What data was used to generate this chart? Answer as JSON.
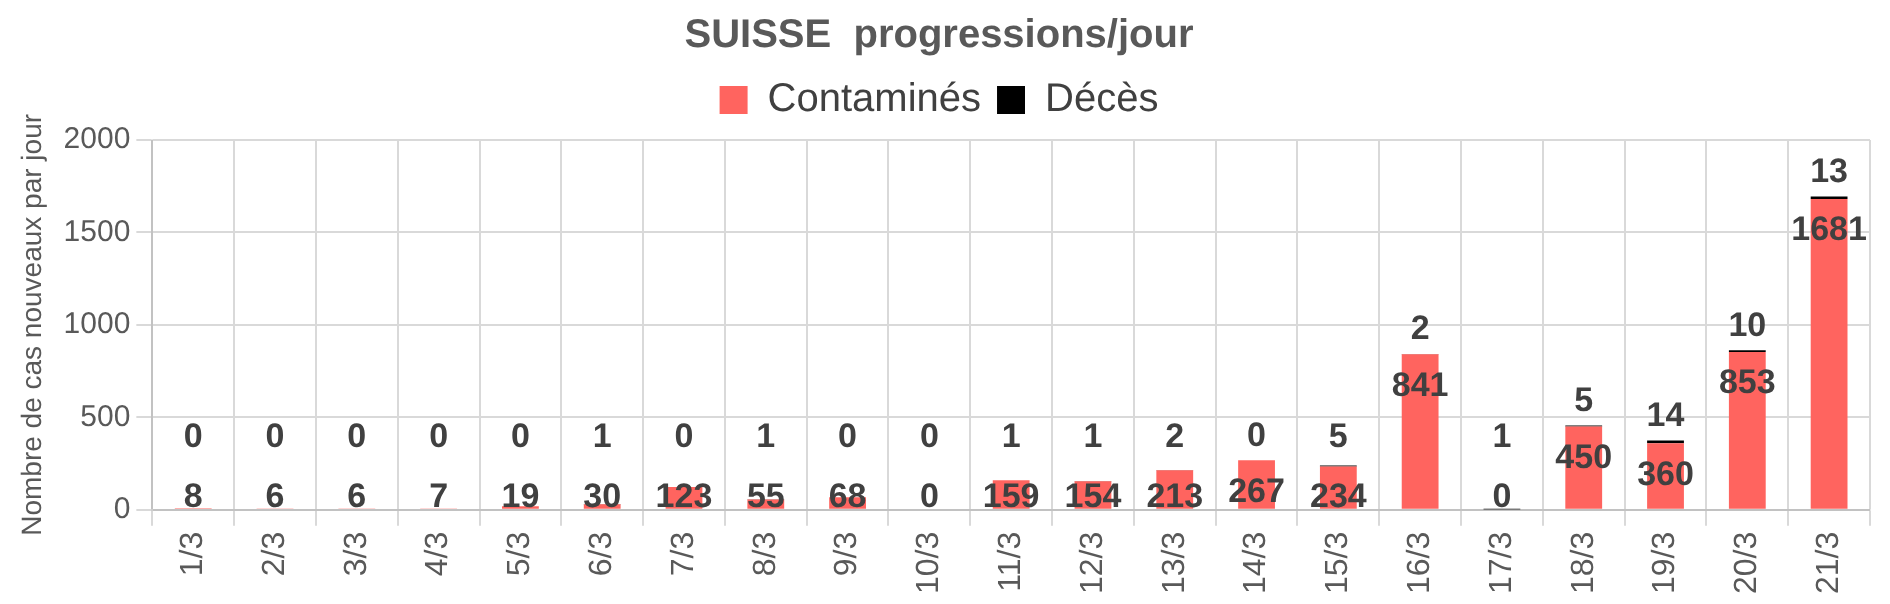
{
  "chart_data": {
    "type": "bar",
    "title": "SUISSE  progressions/jour",
    "ylabel": "Nombre de cas nouveaux par jour",
    "categories": [
      "1/3",
      "2/3",
      "3/3",
      "4/3",
      "5/3",
      "6/3",
      "7/3",
      "8/3",
      "9/3",
      "10/3",
      "11/3",
      "12/3",
      "13/3",
      "14/3",
      "15/3",
      "16/3",
      "17/3",
      "18/3",
      "19/3",
      "20/3",
      "21/3"
    ],
    "series": [
      {
        "name": "Contaminés",
        "color": "#ff645f",
        "values": [
          8,
          6,
          6,
          7,
          19,
          30,
          123,
          55,
          68,
          0,
          159,
          154,
          213,
          267,
          234,
          841,
          0,
          450,
          360,
          853,
          1681
        ]
      },
      {
        "name": "Décès",
        "color": "#000000",
        "values": [
          0,
          0,
          0,
          0,
          0,
          1,
          0,
          1,
          0,
          0,
          1,
          1,
          2,
          0,
          5,
          2,
          1,
          5,
          14,
          10,
          13
        ]
      }
    ],
    "stacked": true,
    "ylim": [
      0,
      2000
    ],
    "yticks": [
      0,
      500,
      1000,
      1500,
      2000
    ],
    "grid": true,
    "legend": "top",
    "data_labels": true
  }
}
